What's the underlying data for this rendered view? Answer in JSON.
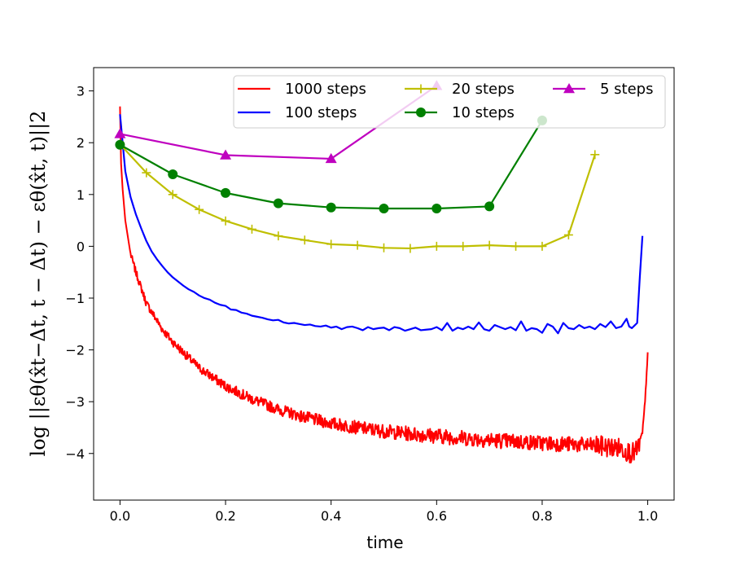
{
  "chart_data": {
    "type": "line",
    "title": "",
    "xlabel": "time",
    "ylabel": "log ||εθ(x̂t−Δt, t − Δt) − εθ(x̂t, t)||2",
    "xlim": [
      -0.05,
      1.05
    ],
    "ylim": [
      -4.9,
      3.45
    ],
    "xticks": [
      0.0,
      0.2,
      0.4,
      0.6,
      0.8,
      1.0
    ],
    "xtick_labels": [
      "0.0",
      "0.2",
      "0.4",
      "0.6",
      "0.8",
      "1.0"
    ],
    "yticks": [
      -4,
      -3,
      -2,
      -1,
      0,
      1,
      2,
      3
    ],
    "ytick_labels": [
      "−4",
      "−3",
      "−2",
      "−1",
      "0",
      "1",
      "2",
      "3"
    ],
    "grid": false,
    "legend_location": "top-right",
    "legend_columns": 3,
    "series": [
      {
        "name": "1000 steps",
        "color": "#ff0000",
        "marker": "none",
        "noisy": true,
        "points": [
          [
            0.0,
            2.7
          ],
          [
            0.002,
            1.6
          ],
          [
            0.005,
            1.1
          ],
          [
            0.01,
            0.5
          ],
          [
            0.02,
            -0.15
          ],
          [
            0.03,
            -0.5
          ],
          [
            0.05,
            -1.1
          ],
          [
            0.08,
            -1.6
          ],
          [
            0.1,
            -1.85
          ],
          [
            0.15,
            -2.35
          ],
          [
            0.2,
            -2.7
          ],
          [
            0.25,
            -2.95
          ],
          [
            0.3,
            -3.15
          ],
          [
            0.35,
            -3.3
          ],
          [
            0.4,
            -3.42
          ],
          [
            0.45,
            -3.5
          ],
          [
            0.5,
            -3.57
          ],
          [
            0.55,
            -3.62
          ],
          [
            0.6,
            -3.66
          ],
          [
            0.65,
            -3.7
          ],
          [
            0.7,
            -3.74
          ],
          [
            0.75,
            -3.77
          ],
          [
            0.8,
            -3.8
          ],
          [
            0.85,
            -3.82
          ],
          [
            0.9,
            -3.85
          ],
          [
            0.95,
            -3.9
          ],
          [
            0.97,
            -4.0
          ],
          [
            0.98,
            -3.95
          ],
          [
            0.99,
            -3.6
          ],
          [
            0.995,
            -3.0
          ],
          [
            1.0,
            -2.05
          ]
        ]
      },
      {
        "name": "100 steps",
        "color": "#0000ff",
        "marker": "none",
        "noisy": false,
        "points": [
          [
            0.0,
            2.55
          ],
          [
            0.01,
            1.45
          ],
          [
            0.02,
            0.95
          ],
          [
            0.03,
            0.62
          ],
          [
            0.04,
            0.35
          ],
          [
            0.05,
            0.1
          ],
          [
            0.06,
            -0.1
          ],
          [
            0.07,
            -0.25
          ],
          [
            0.08,
            -0.38
          ],
          [
            0.09,
            -0.5
          ],
          [
            0.1,
            -0.6
          ],
          [
            0.11,
            -0.68
          ],
          [
            0.12,
            -0.76
          ],
          [
            0.13,
            -0.83
          ],
          [
            0.14,
            -0.88
          ],
          [
            0.15,
            -0.95
          ],
          [
            0.16,
            -1.0
          ],
          [
            0.17,
            -1.03
          ],
          [
            0.18,
            -1.09
          ],
          [
            0.19,
            -1.13
          ],
          [
            0.2,
            -1.15
          ],
          [
            0.21,
            -1.22
          ],
          [
            0.22,
            -1.23
          ],
          [
            0.23,
            -1.28
          ],
          [
            0.24,
            -1.3
          ],
          [
            0.25,
            -1.34
          ],
          [
            0.26,
            -1.36
          ],
          [
            0.27,
            -1.38
          ],
          [
            0.28,
            -1.41
          ],
          [
            0.29,
            -1.43
          ],
          [
            0.3,
            -1.42
          ],
          [
            0.31,
            -1.47
          ],
          [
            0.32,
            -1.49
          ],
          [
            0.33,
            -1.48
          ],
          [
            0.34,
            -1.5
          ],
          [
            0.35,
            -1.52
          ],
          [
            0.36,
            -1.51
          ],
          [
            0.37,
            -1.54
          ],
          [
            0.38,
            -1.55
          ],
          [
            0.39,
            -1.53
          ],
          [
            0.4,
            -1.57
          ],
          [
            0.41,
            -1.55
          ],
          [
            0.42,
            -1.6
          ],
          [
            0.43,
            -1.56
          ],
          [
            0.44,
            -1.55
          ],
          [
            0.45,
            -1.58
          ],
          [
            0.46,
            -1.62
          ],
          [
            0.47,
            -1.56
          ],
          [
            0.48,
            -1.6
          ],
          [
            0.49,
            -1.58
          ],
          [
            0.5,
            -1.57
          ],
          [
            0.51,
            -1.62
          ],
          [
            0.52,
            -1.56
          ],
          [
            0.53,
            -1.58
          ],
          [
            0.54,
            -1.63
          ],
          [
            0.55,
            -1.6
          ],
          [
            0.56,
            -1.57
          ],
          [
            0.57,
            -1.62
          ],
          [
            0.58,
            -1.61
          ],
          [
            0.59,
            -1.6
          ],
          [
            0.6,
            -1.56
          ],
          [
            0.61,
            -1.62
          ],
          [
            0.62,
            -1.48
          ],
          [
            0.63,
            -1.63
          ],
          [
            0.64,
            -1.57
          ],
          [
            0.65,
            -1.6
          ],
          [
            0.66,
            -1.55
          ],
          [
            0.67,
            -1.6
          ],
          [
            0.68,
            -1.47
          ],
          [
            0.69,
            -1.6
          ],
          [
            0.7,
            -1.63
          ],
          [
            0.71,
            -1.52
          ],
          [
            0.72,
            -1.56
          ],
          [
            0.73,
            -1.6
          ],
          [
            0.74,
            -1.56
          ],
          [
            0.75,
            -1.62
          ],
          [
            0.76,
            -1.45
          ],
          [
            0.77,
            -1.63
          ],
          [
            0.78,
            -1.58
          ],
          [
            0.79,
            -1.6
          ],
          [
            0.8,
            -1.67
          ],
          [
            0.81,
            -1.5
          ],
          [
            0.82,
            -1.55
          ],
          [
            0.83,
            -1.68
          ],
          [
            0.84,
            -1.48
          ],
          [
            0.85,
            -1.58
          ],
          [
            0.86,
            -1.6
          ],
          [
            0.87,
            -1.52
          ],
          [
            0.88,
            -1.58
          ],
          [
            0.89,
            -1.55
          ],
          [
            0.9,
            -1.6
          ],
          [
            0.91,
            -1.5
          ],
          [
            0.92,
            -1.56
          ],
          [
            0.93,
            -1.45
          ],
          [
            0.94,
            -1.58
          ],
          [
            0.95,
            -1.55
          ],
          [
            0.96,
            -1.4
          ],
          [
            0.965,
            -1.55
          ],
          [
            0.97,
            -1.58
          ],
          [
            0.975,
            -1.53
          ],
          [
            0.98,
            -1.48
          ],
          [
            0.985,
            -0.6
          ],
          [
            0.99,
            0.2
          ]
        ]
      },
      {
        "name": "20 steps",
        "color": "#bfbf00",
        "marker": "plus",
        "noisy": false,
        "points": [
          [
            0.0,
            1.97
          ],
          [
            0.05,
            1.42
          ],
          [
            0.1,
            1.0
          ],
          [
            0.15,
            0.71
          ],
          [
            0.2,
            0.49
          ],
          [
            0.25,
            0.33
          ],
          [
            0.3,
            0.2
          ],
          [
            0.35,
            0.12
          ],
          [
            0.4,
            0.04
          ],
          [
            0.45,
            0.02
          ],
          [
            0.5,
            -0.03
          ],
          [
            0.55,
            -0.04
          ],
          [
            0.6,
            0.0
          ],
          [
            0.65,
            0.0
          ],
          [
            0.7,
            0.02
          ],
          [
            0.75,
            0.0
          ],
          [
            0.8,
            0.0
          ],
          [
            0.85,
            0.22
          ],
          [
            0.9,
            1.77
          ]
        ]
      },
      {
        "name": "10 steps",
        "color": "#008000",
        "marker": "circle",
        "noisy": false,
        "points": [
          [
            0.0,
            1.96
          ],
          [
            0.1,
            1.39
          ],
          [
            0.2,
            1.03
          ],
          [
            0.3,
            0.83
          ],
          [
            0.4,
            0.75
          ],
          [
            0.5,
            0.73
          ],
          [
            0.6,
            0.73
          ],
          [
            0.7,
            0.77
          ],
          [
            0.8,
            2.43
          ]
        ]
      },
      {
        "name": "5 steps",
        "color": "#bf00bf",
        "marker": "triangle",
        "noisy": false,
        "points": [
          [
            0.0,
            2.17
          ],
          [
            0.2,
            1.76
          ],
          [
            0.4,
            1.69
          ],
          [
            0.6,
            3.1
          ]
        ]
      }
    ]
  }
}
